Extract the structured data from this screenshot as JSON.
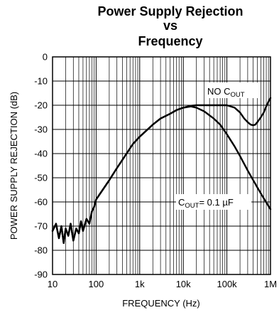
{
  "chart_data": {
    "type": "line",
    "title_lines": [
      "Power Supply Rejection",
      "vs",
      "Frequency"
    ],
    "xlabel": "FREQUENCY (Hz)",
    "ylabel": "POWER SUPPLY REJECTION (dB)",
    "x_scale": "log",
    "xlim": [
      10,
      1000000
    ],
    "ylim": [
      -90,
      0
    ],
    "x_ticks": [
      {
        "value": 10,
        "label": "10"
      },
      {
        "value": 100,
        "label": "100"
      },
      {
        "value": 1000,
        "label": "1k"
      },
      {
        "value": 10000,
        "label": "10k"
      },
      {
        "value": 100000,
        "label": "100k"
      },
      {
        "value": 1000000,
        "label": "1M"
      }
    ],
    "y_ticks": [
      0,
      -10,
      -20,
      -30,
      -40,
      -50,
      -60,
      -70,
      -80,
      -90
    ],
    "grid": true,
    "annotations": [
      {
        "text": "NO C",
        "subscript": "OUT",
        "suffix": ""
      },
      {
        "text": "C",
        "subscript": "OUT",
        "suffix": "= 0.1 µF"
      }
    ],
    "series": [
      {
        "curve": "no_cout",
        "x": [
          10,
          12,
          14,
          16,
          18,
          20,
          23,
          26,
          30,
          35,
          40,
          45,
          50,
          60,
          70,
          80,
          90,
          100,
          200,
          300,
          500,
          700,
          1000,
          2000,
          3000,
          5000,
          7000,
          10000,
          15000,
          20000,
          30000,
          40000,
          50000,
          60000,
          80000,
          100000,
          150000,
          200000,
          250000,
          300000,
          350000,
          400000,
          450000,
          500000,
          600000,
          700000,
          800000,
          900000,
          1000000
        ],
        "y": [
          -72,
          -69,
          -75,
          -70,
          -77,
          -71,
          -74,
          -69,
          -76,
          -71,
          -73,
          -68,
          -72,
          -67,
          -69,
          -64,
          -62,
          -59,
          -51,
          -46,
          -40,
          -36,
          -33,
          -28,
          -25.5,
          -23.5,
          -22,
          -21,
          -20.2,
          -20,
          -20,
          -20,
          -20,
          -20,
          -20,
          -20,
          -21,
          -23,
          -25.5,
          -27,
          -28,
          -28.3,
          -28,
          -27,
          -25,
          -23,
          -20.5,
          -18.5,
          -17
        ]
      },
      {
        "curve": "cout_0_1uF",
        "x": [
          10,
          12,
          14,
          16,
          18,
          20,
          23,
          26,
          30,
          35,
          40,
          45,
          50,
          60,
          70,
          80,
          90,
          100,
          200,
          300,
          500,
          700,
          1000,
          2000,
          3000,
          5000,
          7000,
          10000,
          15000,
          20000,
          30000,
          50000,
          70000,
          100000,
          150000,
          200000,
          300000,
          500000,
          700000,
          1000000
        ],
        "y": [
          -72,
          -69,
          -75,
          -70,
          -77,
          -71,
          -74,
          -69,
          -76,
          -71,
          -73,
          -68,
          -72,
          -67,
          -69,
          -64,
          -62,
          -59,
          -51,
          -46,
          -40,
          -36,
          -33,
          -28,
          -25.5,
          -23.5,
          -22,
          -21,
          -20.5,
          -21,
          -22.5,
          -25.5,
          -28,
          -32,
          -37,
          -41,
          -47,
          -54,
          -58.5,
          -63
        ]
      }
    ]
  }
}
